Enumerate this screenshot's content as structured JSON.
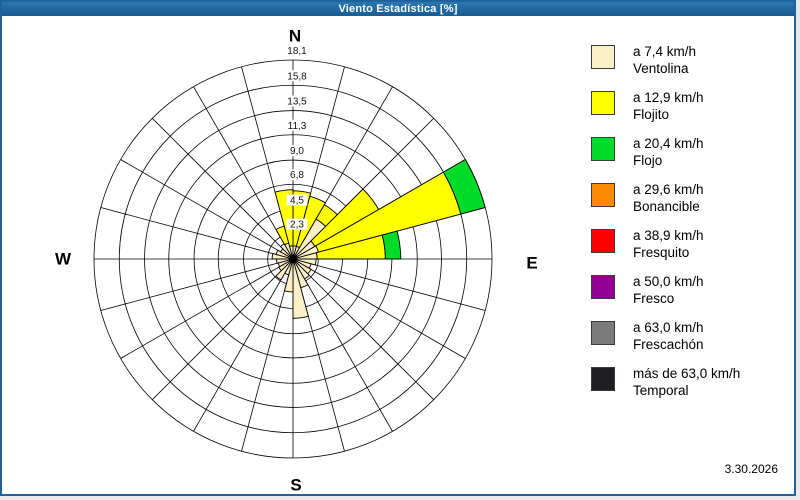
{
  "window": {
    "title": "Viento Estadística [%]",
    "date": "3.30.2026"
  },
  "compass": {
    "north": "N",
    "east": "E",
    "south": "S",
    "west": "W"
  },
  "legend": {
    "items": [
      {
        "speed": "a 7,4 km/h",
        "name": "Ventolina",
        "color": "#FAF0C8"
      },
      {
        "speed": "a 12,9 km/h",
        "name": "Flojito",
        "color": "#FFFF00"
      },
      {
        "speed": "a 20,4 km/h",
        "name": "Flojo",
        "color": "#00DC28"
      },
      {
        "speed": "a 29,6 km/h",
        "name": "Bonancible",
        "color": "#FF8A00"
      },
      {
        "speed": "a 38,9 km/h",
        "name": "Fresquito",
        "color": "#FF0000"
      },
      {
        "speed": "a 50,0 km/h",
        "name": "Fresco",
        "color": "#930093"
      },
      {
        "speed": "a 63,0 km/h",
        "name": "Frescachón",
        "color": "#7B7B7B"
      },
      {
        "speed": "más de 63,0 km/h",
        "name": "Temporal",
        "color": "#1F1F23"
      }
    ]
  },
  "chart_data": {
    "type": "wind-rose",
    "title": "Viento Estadística [%]",
    "units": "%",
    "max_value": 18.1,
    "ring_values": [
      2.3,
      4.5,
      6.8,
      9.0,
      11.3,
      13.5,
      15.8,
      18.1
    ],
    "ring_labels": [
      "2,3",
      "4,5",
      "6,8",
      "9,0",
      "11,3",
      "13,5",
      "15,8",
      "18,1"
    ],
    "sector_count": 24,
    "sector_width_deg": 15,
    "classes": [
      {
        "id": "ventolina",
        "color": "#FAF0C8"
      },
      {
        "id": "flojito",
        "color": "#FFFF00"
      },
      {
        "id": "flojo",
        "color": "#00DC28"
      }
    ],
    "sectors": [
      {
        "start_deg": 0,
        "cumulative": [
          1.2,
          6.2
        ]
      },
      {
        "start_deg": 15,
        "cumulative": [
          1.2,
          5.9
        ]
      },
      {
        "start_deg": 30,
        "cumulative": [
          4.2,
          5.7
        ]
      },
      {
        "start_deg": 45,
        "cumulative": [
          2.3,
          9.0
        ]
      },
      {
        "start_deg": 60,
        "cumulative": [
          2.4,
          15.8,
          18.1
        ]
      },
      {
        "start_deg": 75,
        "cumulative": [
          2.2,
          8.4,
          9.8
        ]
      },
      {
        "start_deg": 90,
        "cumulative": [
          2.1
        ]
      },
      {
        "start_deg": 105,
        "cumulative": [
          1.7
        ]
      },
      {
        "start_deg": 120,
        "cumulative": [
          1.9
        ]
      },
      {
        "start_deg": 135,
        "cumulative": [
          2.1
        ]
      },
      {
        "start_deg": 150,
        "cumulative": [
          2.7
        ]
      },
      {
        "start_deg": 165,
        "cumulative": [
          5.4
        ]
      },
      {
        "start_deg": 180,
        "cumulative": [
          3.0
        ]
      },
      {
        "start_deg": 195,
        "cumulative": [
          1.5
        ]
      },
      {
        "start_deg": 210,
        "cumulative": [
          2.2
        ]
      },
      {
        "start_deg": 225,
        "cumulative": [
          1.5
        ]
      },
      {
        "start_deg": 240,
        "cumulative": [
          1.4
        ]
      },
      {
        "start_deg": 255,
        "cumulative": [
          1.5
        ]
      },
      {
        "start_deg": 270,
        "cumulative": [
          1.9
        ]
      },
      {
        "start_deg": 285,
        "cumulative": [
          1.6
        ]
      },
      {
        "start_deg": 300,
        "cumulative": [
          1.3
        ]
      },
      {
        "start_deg": 315,
        "cumulative": [
          1.6
        ]
      },
      {
        "start_deg": 330,
        "cumulative": [
          1.5,
          3.1
        ]
      },
      {
        "start_deg": 345,
        "cumulative": [
          1.2,
          6.3
        ]
      }
    ]
  }
}
